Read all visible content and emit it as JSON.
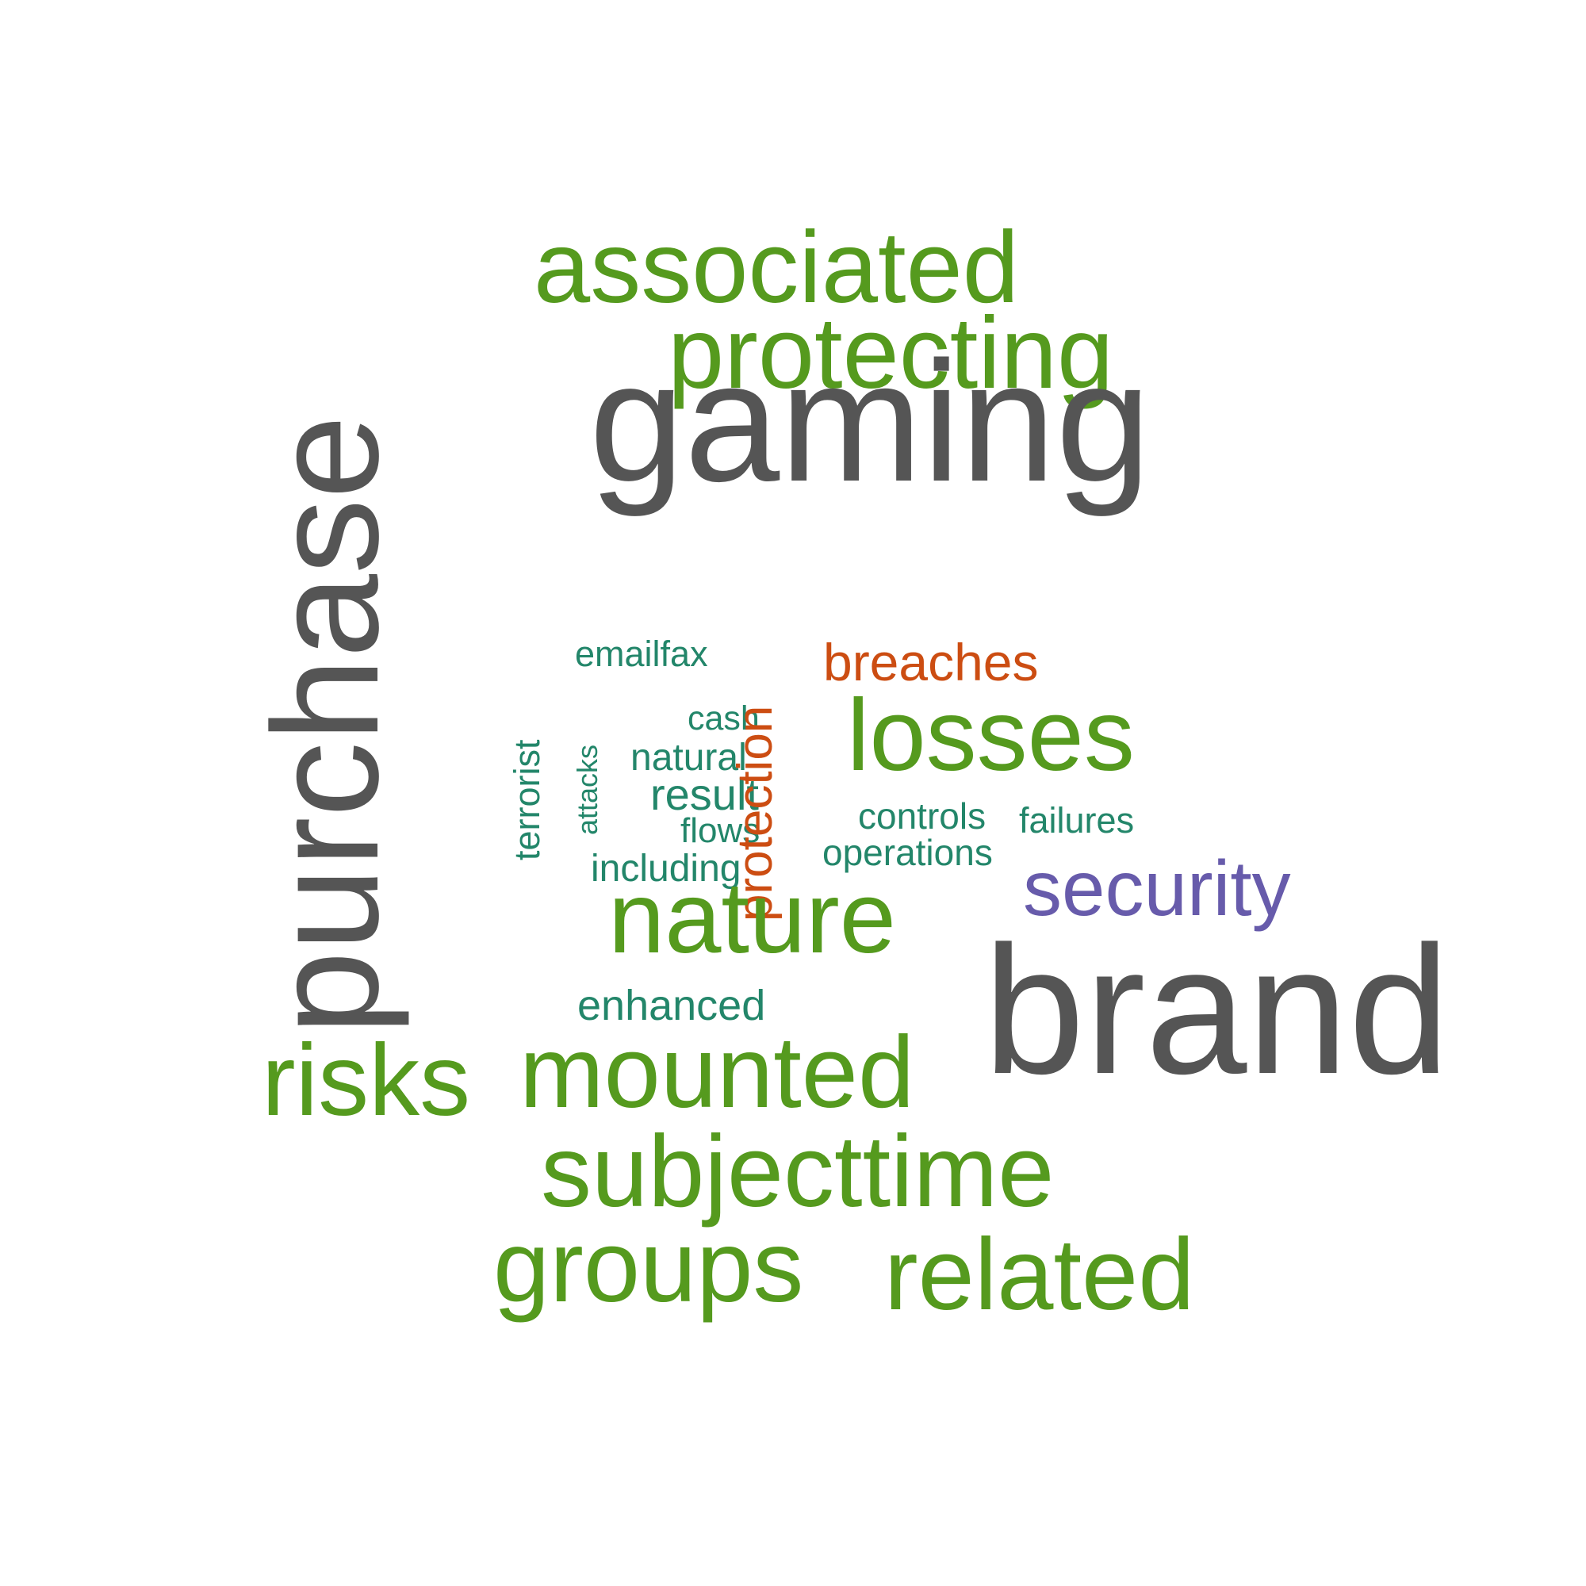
{
  "words": {
    "purchase": "purchase",
    "associated": "associated",
    "protecting": "protecting",
    "gaming": "gaming",
    "emailfax": "emailfax",
    "terrorist": "terrorist",
    "attacks": "attacks",
    "cash": "cash",
    "natural": "natural",
    "result": "result",
    "flows": "flows",
    "including": "including",
    "protection": "protection",
    "breaches": "breaches",
    "losses": "losses",
    "glyph": "",
    "controls": "controls",
    "operations": "operations",
    "failures": "failures",
    "security": "security",
    "nature": "nature",
    "brand": "brand",
    "enhanced": "enhanced",
    "risks": "risks",
    "mounted": "mounted",
    "subjecttime": "subjecttime",
    "groups": "groups",
    "related": "related"
  },
  "colors": {
    "gray": "#555555",
    "green": "#559a1e",
    "teal": "#23866a",
    "orange": "#cc4d12",
    "purple": "#675bab"
  }
}
